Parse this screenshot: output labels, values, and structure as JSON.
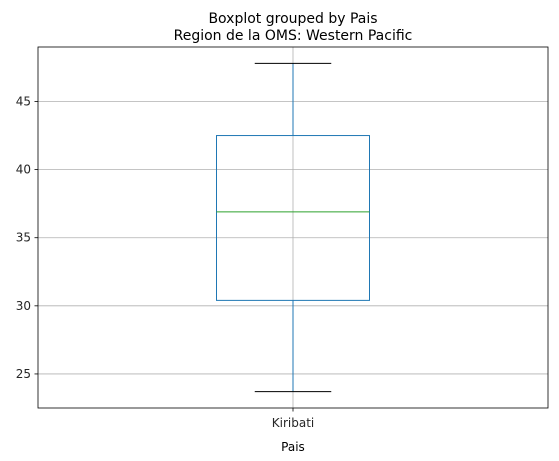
{
  "chart_data": {
    "type": "boxplot",
    "suptitle": "Boxplot grouped by Pais",
    "title": "Region de la OMS: Western Pacific",
    "xlabel": "Pais",
    "ylabel": "",
    "categories": [
      "Kiribati"
    ],
    "boxes": [
      {
        "category": "Kiribati",
        "whisker_low": 23.7,
        "q1": 30.4,
        "median": 36.9,
        "q3": 42.5,
        "whisker_high": 47.8
      }
    ],
    "ylim": [
      22.5,
      49.0
    ],
    "yticks": [
      25,
      30,
      35,
      40,
      45
    ],
    "grid": true,
    "colors": {
      "box": "#1f77b4",
      "median": "#2ca02c",
      "whisker": "#1f77b4",
      "cap": "#000000",
      "grid": "#b0b0b0"
    }
  }
}
